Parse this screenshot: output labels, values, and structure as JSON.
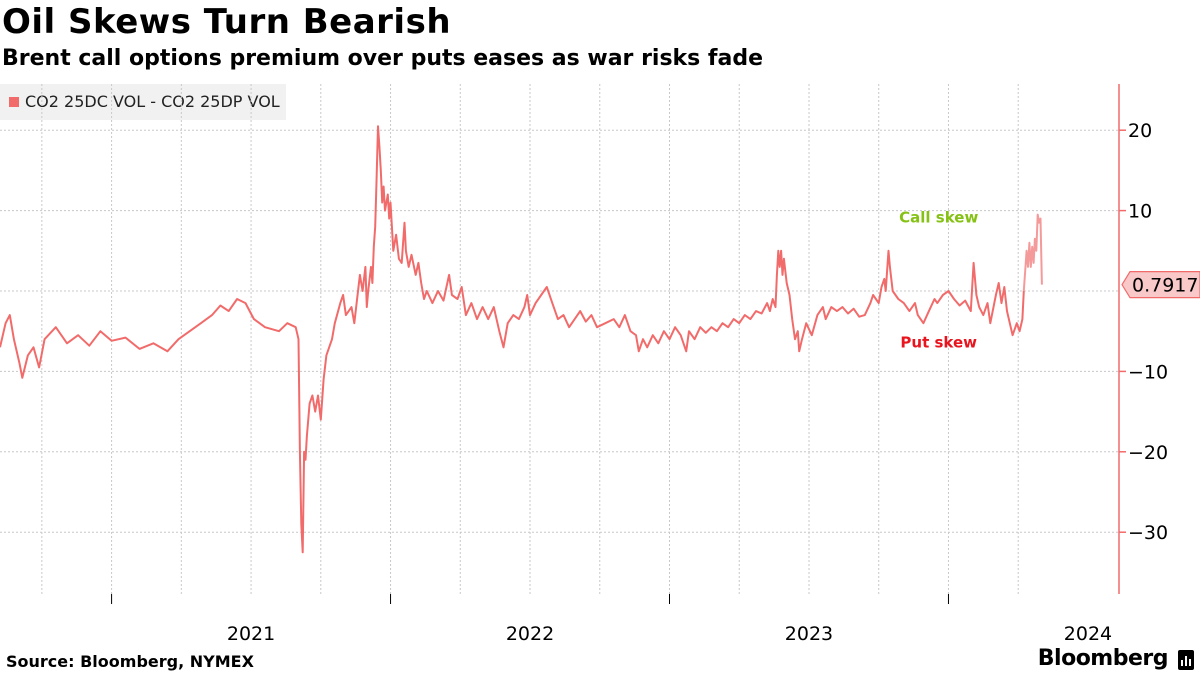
{
  "title": "Oil Skews Turn Bearish",
  "subtitle": "Brent call options premium over puts eases as war risks fade",
  "source": "Source: Bloomberg, NYMEX",
  "brand": "Bloomberg",
  "colors": {
    "line": "#f26b6b",
    "line_recent": "#f59a9a",
    "grid": "#c8c8c8",
    "call": "#86c215",
    "put": "#e8141e"
  },
  "chart_data": {
    "type": "line",
    "title": "Oil Skews Turn Bearish",
    "legend": [
      "CO2 25DC VOL - CO2 25DP VOL"
    ],
    "legend_position": "top-left",
    "ylim": [
      -38,
      26
    ],
    "yticks": [
      20,
      10,
      -10,
      -20,
      -30
    ],
    "y_axis_side": "right",
    "xlim": [
      2020.6,
      2024.45
    ],
    "xticks": [
      2021,
      2022,
      2023,
      2024
    ],
    "xtick_labels": [
      "2021",
      "2022",
      "2023",
      "2024"
    ],
    "last_value_label": "0.7917",
    "annotations": [
      {
        "text": "Call skew",
        "x": 2023.75,
        "y": 7.8,
        "color": "#86c215"
      },
      {
        "text": "Put skew",
        "x": 2023.75,
        "y": -7.8,
        "color": "#e8141e"
      }
    ],
    "series": [
      {
        "name": "CO2 25DC VOL - CO2 25DP VOL",
        "points": [
          [
            2020.6,
            -7.0
          ],
          [
            2020.62,
            -4.0
          ],
          [
            2020.635,
            -3.0
          ],
          [
            2020.65,
            -6.0
          ],
          [
            2020.67,
            -9.0
          ],
          [
            2020.68,
            -10.8
          ],
          [
            2020.7,
            -8.0
          ],
          [
            2020.72,
            -7.0
          ],
          [
            2020.74,
            -9.5
          ],
          [
            2020.76,
            -6.0
          ],
          [
            2020.8,
            -4.5
          ],
          [
            2020.84,
            -6.5
          ],
          [
            2020.88,
            -5.5
          ],
          [
            2020.92,
            -6.8
          ],
          [
            2020.96,
            -5.0
          ],
          [
            2021.0,
            -6.2
          ],
          [
            2021.05,
            -5.8
          ],
          [
            2021.1,
            -7.2
          ],
          [
            2021.15,
            -6.5
          ],
          [
            2021.2,
            -7.5
          ],
          [
            2021.24,
            -6.0
          ],
          [
            2021.28,
            -5.0
          ],
          [
            2021.32,
            -4.0
          ],
          [
            2021.36,
            -3.0
          ],
          [
            2021.39,
            -1.8
          ],
          [
            2021.42,
            -2.5
          ],
          [
            2021.45,
            -1.0
          ],
          [
            2021.48,
            -1.5
          ],
          [
            2021.51,
            -3.5
          ],
          [
            2021.55,
            -4.5
          ],
          [
            2021.6,
            -5.0
          ],
          [
            2021.63,
            -4.0
          ],
          [
            2021.66,
            -4.5
          ],
          [
            2021.67,
            -6.0
          ],
          [
            2021.675,
            -20.0
          ],
          [
            2021.68,
            -29.0
          ],
          [
            2021.685,
            -32.5
          ],
          [
            2021.69,
            -20.0
          ],
          [
            2021.695,
            -21.0
          ],
          [
            2021.7,
            -18.0
          ],
          [
            2021.71,
            -14.0
          ],
          [
            2021.72,
            -13.0
          ],
          [
            2021.73,
            -15.0
          ],
          [
            2021.74,
            -13.0
          ],
          [
            2021.75,
            -16.0
          ],
          [
            2021.76,
            -11.0
          ],
          [
            2021.77,
            -8.0
          ],
          [
            2021.79,
            -6.0
          ],
          [
            2021.8,
            -4.0
          ],
          [
            2021.82,
            -1.5
          ],
          [
            2021.83,
            -0.5
          ],
          [
            2021.84,
            -3.0
          ],
          [
            2021.86,
            -2.0
          ],
          [
            2021.87,
            -4.0
          ],
          [
            2021.88,
            -1.0
          ],
          [
            2021.89,
            2.0
          ],
          [
            2021.9,
            0.0
          ],
          [
            2021.91,
            3.0
          ],
          [
            2021.915,
            -2.0
          ],
          [
            2021.92,
            0.0
          ],
          [
            2021.93,
            3.0
          ],
          [
            2021.935,
            1.0
          ],
          [
            2021.94,
            5.5
          ],
          [
            2021.945,
            8.0
          ],
          [
            2021.95,
            14.0
          ],
          [
            2021.955,
            20.5
          ],
          [
            2021.96,
            18.0
          ],
          [
            2021.965,
            15.0
          ],
          [
            2021.97,
            11.0
          ],
          [
            2021.975,
            13.0
          ],
          [
            2021.98,
            10.0
          ],
          [
            2021.99,
            12.0
          ],
          [
            2021.995,
            9.0
          ],
          [
            2022.0,
            11.0
          ],
          [
            2022.005,
            8.0
          ],
          [
            2022.01,
            5.0
          ],
          [
            2022.02,
            7.0
          ],
          [
            2022.03,
            4.0
          ],
          [
            2022.04,
            3.5
          ],
          [
            2022.05,
            8.5
          ],
          [
            2022.055,
            5.0
          ],
          [
            2022.065,
            3.0
          ],
          [
            2022.075,
            4.5
          ],
          [
            2022.09,
            2.0
          ],
          [
            2022.1,
            3.5
          ],
          [
            2022.11,
            1.0
          ],
          [
            2022.12,
            -1.0
          ],
          [
            2022.13,
            0.0
          ],
          [
            2022.15,
            -1.5
          ],
          [
            2022.17,
            0.0
          ],
          [
            2022.19,
            -1.2
          ],
          [
            2022.21,
            2.0
          ],
          [
            2022.22,
            -0.5
          ],
          [
            2022.24,
            -1.0
          ],
          [
            2022.255,
            0.5
          ],
          [
            2022.27,
            -3.0
          ],
          [
            2022.29,
            -1.5
          ],
          [
            2022.31,
            -3.5
          ],
          [
            2022.33,
            -2.0
          ],
          [
            2022.35,
            -3.5
          ],
          [
            2022.37,
            -2.0
          ],
          [
            2022.39,
            -5.0
          ],
          [
            2022.405,
            -7.0
          ],
          [
            2022.42,
            -4.0
          ],
          [
            2022.44,
            -3.0
          ],
          [
            2022.46,
            -3.5
          ],
          [
            2022.48,
            -2.0
          ],
          [
            2022.49,
            -0.5
          ],
          [
            2022.5,
            -3.0
          ],
          [
            2022.52,
            -1.5
          ],
          [
            2022.54,
            -0.5
          ],
          [
            2022.56,
            0.5
          ],
          [
            2022.58,
            -1.5
          ],
          [
            2022.6,
            -3.5
          ],
          [
            2022.62,
            -3.0
          ],
          [
            2022.64,
            -4.5
          ],
          [
            2022.66,
            -3.5
          ],
          [
            2022.68,
            -2.5
          ],
          [
            2022.7,
            -3.8
          ],
          [
            2022.72,
            -3.0
          ],
          [
            2022.74,
            -4.5
          ],
          [
            2022.77,
            -4.0
          ],
          [
            2022.8,
            -3.5
          ],
          [
            2022.82,
            -4.5
          ],
          [
            2022.84,
            -3.0
          ],
          [
            2022.86,
            -5.0
          ],
          [
            2022.88,
            -5.5
          ],
          [
            2022.89,
            -7.5
          ],
          [
            2022.905,
            -6.0
          ],
          [
            2022.92,
            -7.0
          ],
          [
            2022.94,
            -5.5
          ],
          [
            2022.96,
            -6.5
          ],
          [
            2022.98,
            -5.0
          ],
          [
            2023.0,
            -6.0
          ],
          [
            2023.02,
            -4.5
          ],
          [
            2023.04,
            -5.5
          ],
          [
            2023.06,
            -7.5
          ],
          [
            2023.07,
            -5.0
          ],
          [
            2023.09,
            -6.0
          ],
          [
            2023.11,
            -4.5
          ],
          [
            2023.13,
            -5.2
          ],
          [
            2023.15,
            -4.5
          ],
          [
            2023.17,
            -5.0
          ],
          [
            2023.19,
            -4.0
          ],
          [
            2023.21,
            -4.5
          ],
          [
            2023.23,
            -3.5
          ],
          [
            2023.25,
            -4.0
          ],
          [
            2023.27,
            -3.0
          ],
          [
            2023.29,
            -3.5
          ],
          [
            2023.31,
            -2.5
          ],
          [
            2023.33,
            -2.8
          ],
          [
            2023.35,
            -1.5
          ],
          [
            2023.36,
            -2.5
          ],
          [
            2023.37,
            -1.0
          ],
          [
            2023.38,
            -2.0
          ],
          [
            2023.385,
            2.0
          ],
          [
            2023.39,
            5.0
          ],
          [
            2023.395,
            3.0
          ],
          [
            2023.4,
            5.0
          ],
          [
            2023.405,
            2.0
          ],
          [
            2023.41,
            4.0
          ],
          [
            2023.42,
            1.0
          ],
          [
            2023.43,
            -0.5
          ],
          [
            2023.44,
            -3.5
          ],
          [
            2023.45,
            -6.0
          ],
          [
            2023.46,
            -5.0
          ],
          [
            2023.465,
            -7.5
          ],
          [
            2023.475,
            -6.0
          ],
          [
            2023.49,
            -4.0
          ],
          [
            2023.51,
            -5.5
          ],
          [
            2023.53,
            -3.0
          ],
          [
            2023.55,
            -2.0
          ],
          [
            2023.56,
            -3.5
          ],
          [
            2023.58,
            -2.0
          ],
          [
            2023.6,
            -2.5
          ],
          [
            2023.62,
            -2.0
          ],
          [
            2023.64,
            -2.8
          ],
          [
            2023.66,
            -2.2
          ],
          [
            2023.68,
            -3.2
          ],
          [
            2023.7,
            -3.0
          ],
          [
            2023.72,
            -1.5
          ],
          [
            2023.73,
            -0.5
          ],
          [
            2023.75,
            -1.5
          ],
          [
            2023.76,
            0.5
          ],
          [
            2023.77,
            1.5
          ],
          [
            2023.775,
            0.0
          ],
          [
            2023.78,
            2.5
          ],
          [
            2023.785,
            5.0
          ],
          [
            2023.79,
            3.0
          ],
          [
            2023.8,
            0.0
          ],
          [
            2023.82,
            -1.0
          ],
          [
            2023.84,
            -1.5
          ],
          [
            2023.86,
            -2.5
          ],
          [
            2023.88,
            -1.5
          ],
          [
            2023.89,
            -3.0
          ],
          [
            2023.91,
            -4.0
          ],
          [
            2023.93,
            -2.5
          ],
          [
            2023.95,
            -1.0
          ],
          [
            2023.96,
            -1.5
          ],
          [
            2023.98,
            -0.5
          ],
          [
            2024.0,
            0.0
          ],
          [
            2024.02,
            -1.0
          ],
          [
            2024.04,
            -1.8
          ],
          [
            2024.06,
            -1.2
          ],
          [
            2024.08,
            -2.5
          ],
          [
            2024.09,
            3.5
          ],
          [
            2024.1,
            -0.5
          ],
          [
            2024.11,
            -2.0
          ],
          [
            2024.125,
            -3.0
          ],
          [
            2024.14,
            -1.5
          ],
          [
            2024.15,
            -4.0
          ],
          [
            2024.17,
            -0.5
          ],
          [
            2024.18,
            1.0
          ],
          [
            2024.19,
            -1.5
          ],
          [
            2024.2,
            0.5
          ],
          [
            2024.21,
            -2.5
          ],
          [
            2024.22,
            -4.0
          ],
          [
            2024.23,
            -5.5
          ],
          [
            2024.245,
            -4.0
          ],
          [
            2024.255,
            -5.0
          ],
          [
            2024.265,
            -3.5
          ],
          [
            2024.27,
            0.0
          ]
        ],
        "recent_points": [
          [
            2024.27,
            0.0
          ],
          [
            2024.275,
            2.5
          ],
          [
            2024.28,
            5.0
          ],
          [
            2024.285,
            3.0
          ],
          [
            2024.29,
            6.0
          ],
          [
            2024.295,
            3.0
          ],
          [
            2024.3,
            5.5
          ],
          [
            2024.305,
            3.5
          ],
          [
            2024.31,
            6.5
          ],
          [
            2024.315,
            5.0
          ],
          [
            2024.32,
            9.5
          ],
          [
            2024.325,
            8.5
          ],
          [
            2024.33,
            9.0
          ],
          [
            2024.335,
            0.7917
          ]
        ]
      }
    ]
  }
}
